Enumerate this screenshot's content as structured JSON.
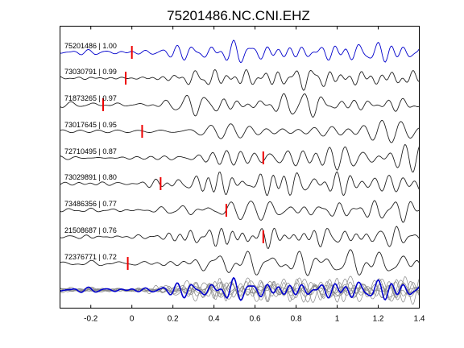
{
  "figure": {
    "title": "75201486.NC.CNI.EHZ"
  },
  "chart_data": {
    "type": "line",
    "title": "75201486.NC.CNI.EHZ",
    "xlabel": "",
    "ylabel": "",
    "xlim": [
      -0.35,
      1.4
    ],
    "xticks": [
      -0.2,
      0,
      0.2,
      0.4,
      0.6,
      0.8,
      1,
      1.2,
      1.4
    ],
    "xtick_labels": [
      "-0.2",
      "0",
      "0.2",
      "0.4",
      "0.6",
      "0.8",
      "1",
      "1.2",
      "1.4"
    ],
    "colors": {
      "reference": "#0000cc",
      "trace": "#222222",
      "pick": "#ee0000",
      "stack": "#888888"
    },
    "series": [
      {
        "label": "75201486 | 1.00",
        "pick": 0.0,
        "reference": true
      },
      {
        "label": "73030791 | 0.99",
        "pick": -0.03
      },
      {
        "label": "71873265 | 0.97",
        "pick": -0.14
      },
      {
        "label": "73017645 | 0.95",
        "pick": 0.05
      },
      {
        "label": "72710495 | 0.87",
        "pick": 0.64
      },
      {
        "label": "73029891 | 0.80",
        "pick": 0.14
      },
      {
        "label": "73486356 | 0.77",
        "pick": 0.46
      },
      {
        "label": "21508687 | 0.76",
        "pick": 0.64
      },
      {
        "label": "72376771 | 0.72",
        "pick": -0.02
      }
    ],
    "overlay": {
      "description_shown": false,
      "traces": 9,
      "highlight": "reference"
    }
  }
}
